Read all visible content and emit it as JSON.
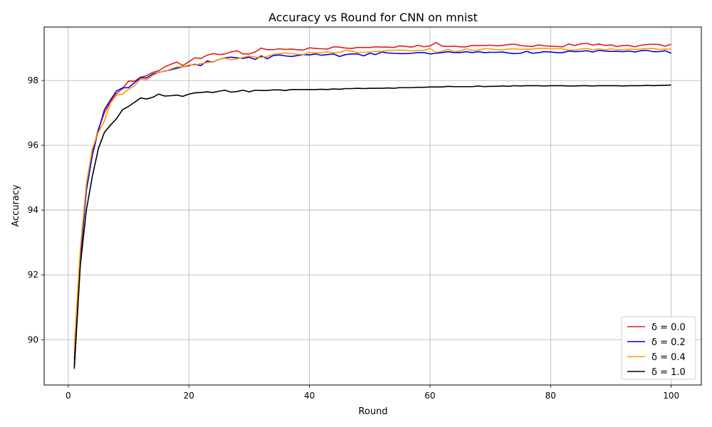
{
  "chart_data": {
    "type": "line",
    "title": "Accuracy vs Round for CNN on mnist",
    "xlabel": "Round",
    "ylabel": "Accuracy",
    "xlim": [
      -4,
      105
    ],
    "ylim": [
      88.6,
      99.65
    ],
    "xticks": [
      0,
      20,
      40,
      60,
      80,
      100
    ],
    "yticks": [
      90,
      92,
      94,
      96,
      98
    ],
    "grid": true,
    "legend_position": "lower-right",
    "x": [
      1,
      2,
      3,
      4,
      5,
      6,
      7,
      8,
      9,
      10,
      11,
      12,
      13,
      14,
      15,
      16,
      17,
      18,
      19,
      20,
      21,
      22,
      23,
      24,
      25,
      26,
      27,
      28,
      29,
      30,
      31,
      32,
      33,
      34,
      35,
      36,
      37,
      38,
      39,
      40,
      41,
      42,
      43,
      44,
      45,
      46,
      47,
      48,
      49,
      50,
      51,
      52,
      53,
      54,
      55,
      56,
      57,
      58,
      59,
      60,
      61,
      62,
      63,
      64,
      65,
      66,
      67,
      68,
      69,
      70,
      71,
      72,
      73,
      74,
      75,
      76,
      77,
      78,
      79,
      80,
      81,
      82,
      83,
      84,
      85,
      86,
      87,
      88,
      89,
      90,
      91,
      92,
      93,
      94,
      95,
      96,
      97,
      98,
      99,
      100
    ],
    "series": [
      {
        "name": "δ = 0.0",
        "color": "#e41a1c",
        "values": [
          89.4,
          92.6,
          94.7,
          95.8,
          96.5,
          97.0,
          97.35,
          97.6,
          97.75,
          97.98,
          97.98,
          98.1,
          98.15,
          98.25,
          98.3,
          98.42,
          98.5,
          98.57,
          98.46,
          98.58,
          98.7,
          98.68,
          98.78,
          98.83,
          98.8,
          98.82,
          98.88,
          98.92,
          98.82,
          98.82,
          98.88,
          99.0,
          98.95,
          98.95,
          98.98,
          98.96,
          98.97,
          98.95,
          98.94,
          99.01,
          98.99,
          98.98,
          98.97,
          99.04,
          99.03,
          99.0,
          98.99,
          99.02,
          99.02,
          99.02,
          99.04,
          99.03,
          99.03,
          99.02,
          99.07,
          99.05,
          99.03,
          99.09,
          99.04,
          99.07,
          99.17,
          99.06,
          99.05,
          99.06,
          99.04,
          99.04,
          99.08,
          99.08,
          99.08,
          99.09,
          99.07,
          99.08,
          99.11,
          99.12,
          99.08,
          99.06,
          99.05,
          99.1,
          99.07,
          99.06,
          99.05,
          99.04,
          99.13,
          99.08,
          99.13,
          99.15,
          99.09,
          99.13,
          99.08,
          99.1,
          99.05,
          99.08,
          99.08,
          99.04,
          99.09,
          99.11,
          99.12,
          99.11,
          99.06,
          99.12
        ]
      },
      {
        "name": "δ = 0.2",
        "color": "#0000ee",
        "values": [
          89.2,
          92.5,
          94.6,
          95.7,
          96.45,
          97.1,
          97.4,
          97.68,
          97.77,
          97.78,
          97.93,
          98.09,
          98.08,
          98.2,
          98.25,
          98.29,
          98.33,
          98.38,
          98.42,
          98.46,
          98.5,
          98.46,
          98.6,
          98.57,
          98.65,
          98.7,
          98.72,
          98.7,
          98.68,
          98.72,
          98.65,
          98.76,
          98.67,
          98.77,
          98.79,
          98.76,
          98.74,
          98.77,
          98.8,
          98.79,
          98.82,
          98.78,
          98.8,
          98.82,
          98.74,
          98.8,
          98.82,
          98.82,
          98.76,
          98.84,
          98.8,
          98.88,
          98.85,
          98.84,
          98.83,
          98.83,
          98.84,
          98.86,
          98.86,
          98.82,
          98.84,
          98.86,
          98.89,
          98.86,
          98.86,
          98.89,
          98.86,
          98.89,
          98.86,
          98.87,
          98.87,
          98.88,
          98.85,
          98.83,
          98.84,
          98.9,
          98.84,
          98.86,
          98.89,
          98.88,
          98.86,
          98.86,
          98.91,
          98.89,
          98.9,
          98.92,
          98.88,
          98.93,
          98.91,
          98.9,
          98.9,
          98.89,
          98.91,
          98.88,
          98.92,
          98.93,
          98.89,
          98.89,
          98.92,
          98.84
        ]
      },
      {
        "name": "δ = 0.4",
        "color": "#ff9900",
        "values": [
          89.8,
          92.8,
          94.8,
          95.9,
          96.4,
          96.75,
          97.3,
          97.55,
          97.58,
          97.73,
          97.83,
          98.05,
          98.02,
          98.15,
          98.26,
          98.28,
          98.35,
          98.42,
          98.42,
          98.48,
          98.48,
          98.52,
          98.55,
          98.58,
          98.65,
          98.69,
          98.64,
          98.67,
          98.71,
          98.76,
          98.72,
          98.71,
          98.74,
          98.81,
          98.82,
          98.85,
          98.83,
          98.81,
          98.8,
          98.87,
          98.85,
          98.86,
          98.88,
          98.86,
          98.87,
          98.93,
          98.91,
          98.86,
          98.87,
          98.88,
          98.9,
          98.9,
          98.93,
          98.93,
          98.94,
          98.93,
          98.91,
          98.93,
          98.93,
          98.99,
          98.87,
          98.9,
          98.96,
          98.89,
          98.91,
          98.98,
          98.93,
          98.94,
          98.98,
          98.98,
          98.95,
          98.95,
          98.97,
          98.98,
          98.96,
          98.97,
          98.97,
          98.99,
          98.99,
          98.98,
          98.98,
          98.98,
          98.94,
          98.94,
          98.97,
          98.99,
          98.95,
          98.98,
          98.95,
          98.98,
          98.95,
          98.95,
          98.97,
          98.96,
          98.97,
          98.99,
          98.99,
          98.96,
          98.97,
          98.97
        ]
      },
      {
        "name": "δ = 1.0",
        "color": "#000000",
        "values": [
          89.1,
          92.3,
          94.0,
          95.05,
          95.9,
          96.4,
          96.62,
          96.82,
          97.1,
          97.2,
          97.33,
          97.46,
          97.43,
          97.48,
          97.58,
          97.52,
          97.53,
          97.55,
          97.51,
          97.58,
          97.62,
          97.63,
          97.65,
          97.63,
          97.67,
          97.7,
          97.64,
          97.66,
          97.7,
          97.65,
          97.7,
          97.69,
          97.69,
          97.71,
          97.71,
          97.69,
          97.72,
          97.72,
          97.72,
          97.72,
          97.72,
          97.73,
          97.72,
          97.74,
          97.73,
          97.75,
          97.75,
          97.76,
          97.75,
          97.76,
          97.76,
          97.76,
          97.77,
          97.76,
          97.78,
          97.78,
          97.78,
          97.79,
          97.79,
          97.8,
          97.8,
          97.8,
          97.82,
          97.81,
          97.81,
          97.81,
          97.81,
          97.83,
          97.81,
          97.82,
          97.82,
          97.83,
          97.82,
          97.84,
          97.83,
          97.84,
          97.84,
          97.84,
          97.83,
          97.84,
          97.84,
          97.84,
          97.83,
          97.83,
          97.84,
          97.84,
          97.83,
          97.84,
          97.84,
          97.84,
          97.84,
          97.83,
          97.84,
          97.84,
          97.84,
          97.85,
          97.84,
          97.85,
          97.85,
          97.86
        ]
      }
    ]
  }
}
